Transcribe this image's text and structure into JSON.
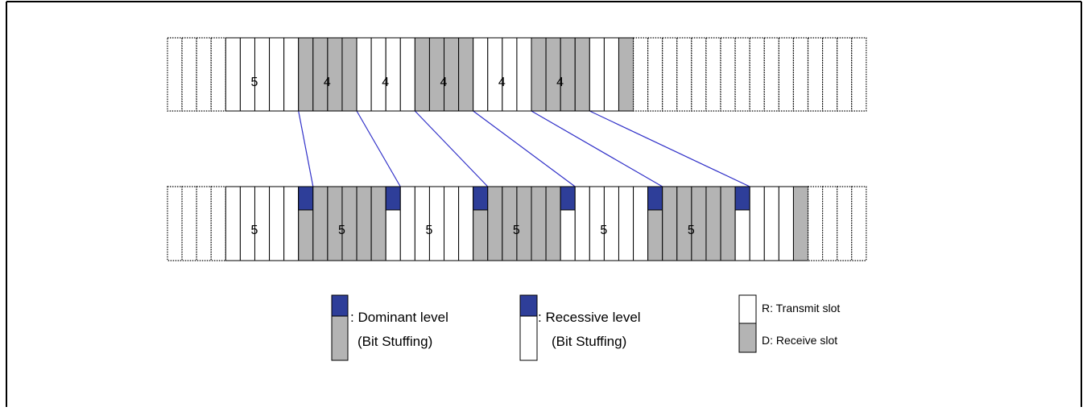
{
  "colors": {
    "dominant": "#2e3e99",
    "receive": "#b4b4b4",
    "transmit": "#ffffff",
    "link": "#3030c8",
    "border": "#000000"
  },
  "top_row": {
    "groups": [
      {
        "label": "5",
        "level": "R"
      },
      {
        "label": "4",
        "level": "D"
      },
      {
        "label": "4",
        "level": "R"
      },
      {
        "label": "4",
        "level": "D"
      },
      {
        "label": "4",
        "level": "R"
      },
      {
        "label": "4",
        "level": "D"
      }
    ]
  },
  "bottom_row": {
    "groups": [
      {
        "label": "5",
        "level": "R"
      },
      {
        "label": "5",
        "level": "D"
      },
      {
        "label": "5",
        "level": "R"
      },
      {
        "label": "5",
        "level": "D"
      },
      {
        "label": "5",
        "level": "R"
      },
      {
        "label": "5",
        "level": "D"
      }
    ],
    "stuff_bits": [
      "dominant",
      "recessive",
      "dominant",
      "recessive",
      "dominant",
      "recessive"
    ]
  },
  "legend": {
    "dominant": {
      "line1": ": Dominant level",
      "line2": "(Bit Stuffing)"
    },
    "recessive": {
      "line1": ": Recessive level",
      "line2": "(Bit Stuffing)"
    },
    "transmit": "R: Transmit slot",
    "receive": "D: Receive slot"
  }
}
